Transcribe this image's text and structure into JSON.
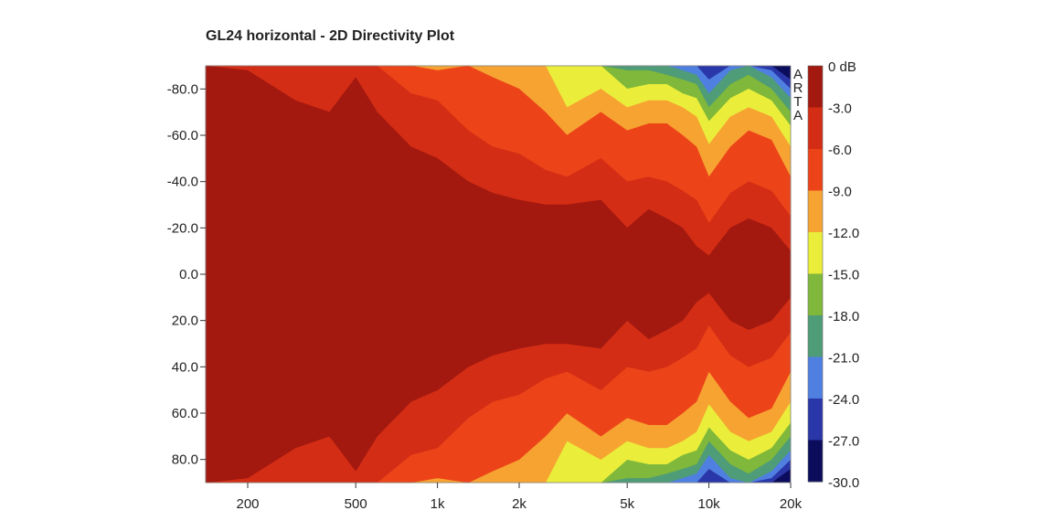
{
  "chart_data": {
    "type": "heatmap",
    "title": "GL24 horizontal - 2D Directivity Plot",
    "xlabel": "",
    "ylabel": "",
    "x_scale": "log",
    "x_range_hz": [
      140,
      20000
    ],
    "y_range_deg": [
      -90,
      90
    ],
    "x_ticks": [
      {
        "value": 200,
        "label": "200"
      },
      {
        "value": 500,
        "label": "500"
      },
      {
        "value": 1000,
        "label": "1k"
      },
      {
        "value": 2000,
        "label": "2k"
      },
      {
        "value": 5000,
        "label": "5k"
      },
      {
        "value": 10000,
        "label": "10k"
      },
      {
        "value": 20000,
        "label": "20k"
      }
    ],
    "y_ticks": [
      {
        "value": -80,
        "label": "-80.0"
      },
      {
        "value": -60,
        "label": "-60.0"
      },
      {
        "value": -40,
        "label": "-40.0"
      },
      {
        "value": -20,
        "label": "-20.0"
      },
      {
        "value": 0,
        "label": "0.0"
      },
      {
        "value": 20,
        "label": "20.0"
      },
      {
        "value": 40,
        "label": "40.0"
      },
      {
        "value": 60,
        "label": "60.0"
      },
      {
        "value": 80,
        "label": "80.0"
      }
    ],
    "colorbar": {
      "labels": [
        "0 dB",
        "-3.0",
        "-6.0",
        "-9.0",
        "-12.0",
        "-15.0",
        "-18.0",
        "-21.0",
        "-24.0",
        "-27.0",
        "-30.0"
      ],
      "levels_db": [
        0,
        -3,
        -6,
        -9,
        -12,
        -15,
        -18,
        -21,
        -24,
        -27,
        -30
      ],
      "colors": [
        "#a3190f",
        "#d42d15",
        "#ec4418",
        "#f7a332",
        "#eaee3a",
        "#7fb83a",
        "#4f9c78",
        "#4f7fe0",
        "#2a37a8",
        "#0c0c5c"
      ]
    },
    "band_colors": [
      "#a3190f",
      "#d42d15",
      "#ec4418",
      "#f7a332",
      "#eaee3a",
      "#7fb83a",
      "#4f9c78",
      "#4f7fe0",
      "#2a37a8",
      "#0c0c5c"
    ],
    "watermark": "ARTA",
    "contour_bands_by_frequency": {
      "freq_hz": [
        140,
        200,
        300,
        400,
        500,
        600,
        800,
        1000,
        1300,
        1600,
        2000,
        2500,
        3000,
        4000,
        5000,
        6000,
        7000,
        8000,
        9000,
        10000,
        12000,
        14000,
        17000,
        20000
      ],
      "limit_deg_0dB": [
        90,
        88,
        75,
        70,
        85,
        70,
        55,
        50,
        40,
        35,
        32,
        30,
        30,
        32,
        20,
        28,
        24,
        20,
        12,
        8,
        20,
        24,
        20,
        10
      ],
      "limit_deg_3dB": [
        90,
        90,
        90,
        90,
        90,
        90,
        78,
        75,
        62,
        55,
        52,
        45,
        42,
        50,
        40,
        42,
        40,
        36,
        32,
        22,
        35,
        40,
        36,
        25
      ],
      "limit_deg_6dB": [
        90,
        90,
        90,
        90,
        90,
        90,
        90,
        88,
        90,
        85,
        80,
        70,
        60,
        70,
        62,
        65,
        65,
        60,
        55,
        42,
        55,
        62,
        58,
        42
      ],
      "limit_deg_9dB": [
        90,
        90,
        90,
        90,
        90,
        90,
        90,
        90,
        90,
        90,
        90,
        90,
        72,
        80,
        72,
        75,
        75,
        72,
        68,
        56,
        68,
        72,
        68,
        55
      ],
      "limit_deg_12dB": [
        90,
        90,
        90,
        90,
        90,
        90,
        90,
        90,
        90,
        90,
        90,
        90,
        90,
        90,
        80,
        82,
        82,
        78,
        76,
        66,
        76,
        80,
        75,
        64
      ],
      "limit_deg_15dB": [
        90,
        90,
        90,
        90,
        90,
        90,
        90,
        90,
        90,
        90,
        90,
        90,
        90,
        90,
        88,
        88,
        86,
        84,
        82,
        72,
        82,
        86,
        80,
        70
      ],
      "limit_deg_18dB": [
        90,
        90,
        90,
        90,
        90,
        90,
        90,
        90,
        90,
        90,
        90,
        90,
        90,
        90,
        90,
        90,
        90,
        88,
        86,
        78,
        88,
        90,
        85,
        76
      ],
      "limit_deg_21dB": [
        90,
        90,
        90,
        90,
        90,
        90,
        90,
        90,
        90,
        90,
        90,
        90,
        90,
        90,
        90,
        90,
        90,
        90,
        90,
        84,
        90,
        90,
        88,
        80
      ],
      "limit_deg_24dB": [
        90,
        90,
        90,
        90,
        90,
        90,
        90,
        90,
        90,
        90,
        90,
        90,
        90,
        90,
        90,
        90,
        90,
        90,
        90,
        90,
        90,
        90,
        90,
        84
      ]
    }
  }
}
